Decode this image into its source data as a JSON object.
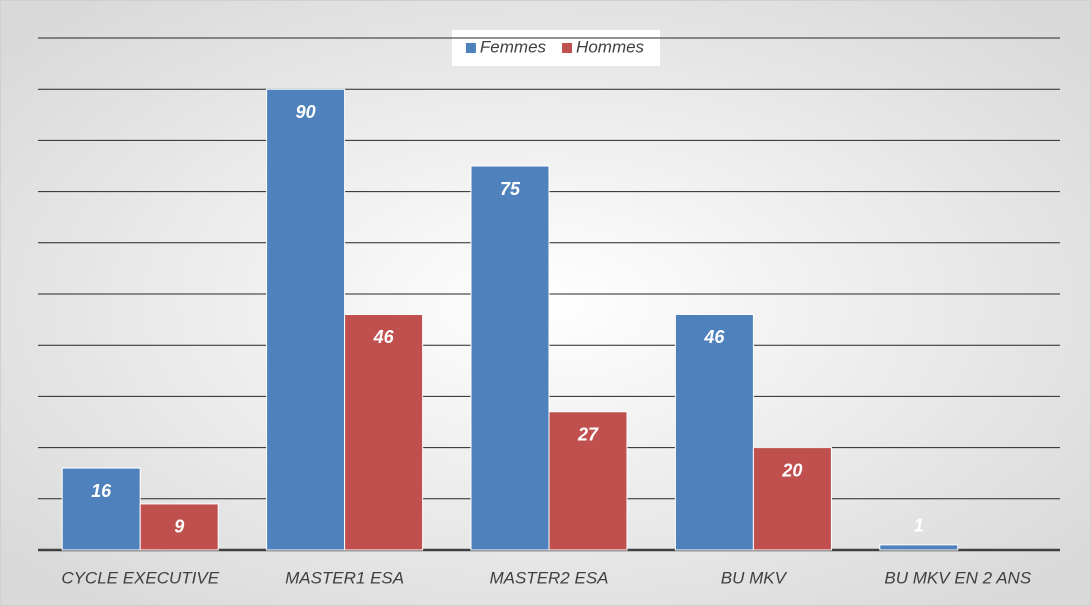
{
  "chart_data": {
    "type": "bar",
    "categories": [
      "CYCLE EXECUTIVE",
      "MASTER1 ESA",
      "MASTER2 ESA",
      "BU MKV",
      "BU MKV EN 2 ANS"
    ],
    "series": [
      {
        "name": "Femmes",
        "color": "#4f81bd",
        "values": [
          16,
          90,
          75,
          46,
          1
        ]
      },
      {
        "name": "Hommes",
        "color": "#c0504d",
        "values": [
          9,
          46,
          27,
          20,
          null
        ]
      }
    ],
    "ylim": [
      0,
      100
    ],
    "yticks": [
      0,
      10,
      20,
      30,
      40,
      50,
      60,
      70,
      80,
      90,
      100
    ],
    "grid": true,
    "legend": "top"
  }
}
